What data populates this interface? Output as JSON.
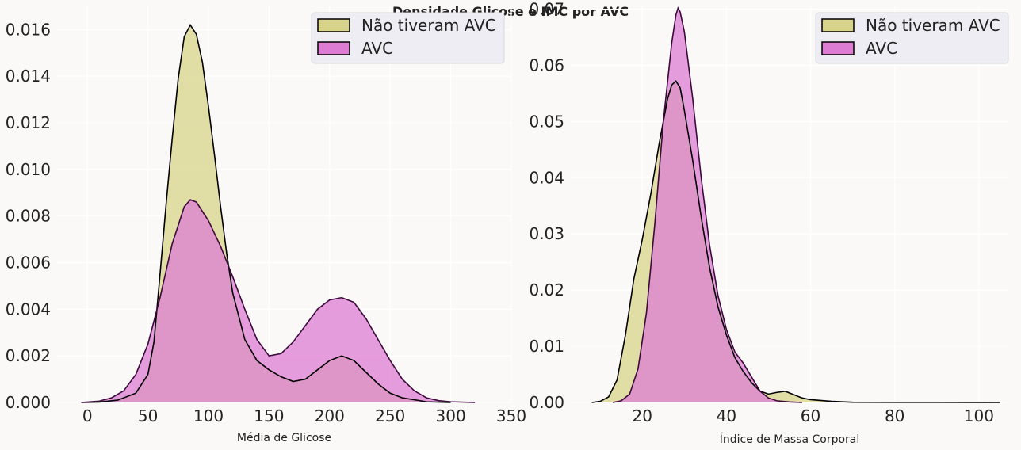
{
  "figure_title": "Densidade Glicose e IMC por AVC",
  "colors": {
    "no_stroke": "#d7d38a",
    "stroke": "#de7cd3",
    "outline": "#000000",
    "plot_bg": "#faf9f7",
    "legend_bg": "#eeedf4"
  },
  "chart_data": [
    {
      "type": "area",
      "xlabel": "Média de Glicose",
      "ylabel": "",
      "xlim": [
        -25,
        350
      ],
      "ylim": [
        0,
        0.017
      ],
      "xticks": [
        0,
        50,
        100,
        150,
        200,
        250,
        300,
        350
      ],
      "yticks": [
        0.0,
        0.002,
        0.004,
        0.006,
        0.008,
        0.01,
        0.012,
        0.014,
        0.016
      ],
      "ytick_labels": [
        "0.000",
        "0.002",
        "0.004",
        "0.006",
        "0.008",
        "0.010",
        "0.012",
        "0.014",
        "0.016"
      ],
      "grid": true,
      "legend_position": "top-right",
      "series": [
        {
          "name": "Não tiveram AVC",
          "color": "#d7d38a",
          "points": [
            [
              -5,
              0
            ],
            [
              10,
              2e-05
            ],
            [
              25,
              0.0001
            ],
            [
              40,
              0.0004
            ],
            [
              50,
              0.0012
            ],
            [
              55,
              0.0026
            ],
            [
              60,
              0.0055
            ],
            [
              65,
              0.0085
            ],
            [
              70,
              0.0113
            ],
            [
              75,
              0.0139
            ],
            [
              80,
              0.0157
            ],
            [
              85,
              0.0162
            ],
            [
              90,
              0.0158
            ],
            [
              95,
              0.0146
            ],
            [
              100,
              0.0127
            ],
            [
              105,
              0.0106
            ],
            [
              110,
              0.0084
            ],
            [
              115,
              0.0064
            ],
            [
              120,
              0.0047
            ],
            [
              130,
              0.0027
            ],
            [
              140,
              0.0018
            ],
            [
              150,
              0.0014
            ],
            [
              160,
              0.0011
            ],
            [
              170,
              0.0009
            ],
            [
              180,
              0.001
            ],
            [
              190,
              0.0014
            ],
            [
              200,
              0.0018
            ],
            [
              210,
              0.002
            ],
            [
              220,
              0.0018
            ],
            [
              230,
              0.0013
            ],
            [
              240,
              0.0008
            ],
            [
              250,
              0.0004
            ],
            [
              260,
              0.0002
            ],
            [
              280,
              3e-05
            ],
            [
              300,
              0
            ]
          ]
        },
        {
          "name": "AVC",
          "color": "#de7cd3",
          "points": [
            [
              -5,
              0
            ],
            [
              10,
              6e-05
            ],
            [
              20,
              0.0002
            ],
            [
              30,
              0.0005
            ],
            [
              40,
              0.0012
            ],
            [
              50,
              0.0025
            ],
            [
              60,
              0.0045
            ],
            [
              70,
              0.0068
            ],
            [
              80,
              0.0084
            ],
            [
              85,
              0.0087
            ],
            [
              90,
              0.0086
            ],
            [
              100,
              0.0078
            ],
            [
              110,
              0.0067
            ],
            [
              120,
              0.0054
            ],
            [
              130,
              0.004
            ],
            [
              140,
              0.0027
            ],
            [
              150,
              0.002
            ],
            [
              160,
              0.0021
            ],
            [
              170,
              0.0026
            ],
            [
              180,
              0.0033
            ],
            [
              190,
              0.004
            ],
            [
              200,
              0.0044
            ],
            [
              210,
              0.0045
            ],
            [
              220,
              0.0043
            ],
            [
              230,
              0.0036
            ],
            [
              240,
              0.0027
            ],
            [
              250,
              0.0018
            ],
            [
              260,
              0.001
            ],
            [
              270,
              0.0005
            ],
            [
              280,
              0.0002
            ],
            [
              290,
              8e-05
            ],
            [
              300,
              3e-05
            ],
            [
              320,
              0
            ]
          ]
        }
      ]
    },
    {
      "type": "area",
      "xlabel": "Índice de Massa Corporal",
      "ylabel": "",
      "xlim": [
        3,
        107
      ],
      "ylim": [
        0,
        0.0705
      ],
      "xticks": [
        20,
        40,
        60,
        80,
        100
      ],
      "yticks": [
        0.0,
        0.01,
        0.02,
        0.03,
        0.04,
        0.05,
        0.06,
        0.07
      ],
      "ytick_labels": [
        "0.00",
        "0.01",
        "0.02",
        "0.03",
        "0.04",
        "0.05",
        "0.06",
        "0.07"
      ],
      "grid": true,
      "legend_position": "top-right",
      "series": [
        {
          "name": "Não tiveram AVC",
          "color": "#d7d38a",
          "points": [
            [
              8,
              0
            ],
            [
              10,
              0.0002
            ],
            [
              12,
              0.001
            ],
            [
              14,
              0.004
            ],
            [
              16,
              0.012
            ],
            [
              18,
              0.022
            ],
            [
              20,
              0.029
            ],
            [
              22,
              0.037
            ],
            [
              24,
              0.046
            ],
            [
              26,
              0.054
            ],
            [
              27,
              0.0565
            ],
            [
              28,
              0.0572
            ],
            [
              29,
              0.056
            ],
            [
              30,
              0.052
            ],
            [
              32,
              0.043
            ],
            [
              34,
              0.033
            ],
            [
              36,
              0.024
            ],
            [
              38,
              0.017
            ],
            [
              40,
              0.012
            ],
            [
              42,
              0.008
            ],
            [
              44,
              0.0055
            ],
            [
              46,
              0.0035
            ],
            [
              48,
              0.002
            ],
            [
              50,
              0.0015
            ],
            [
              52,
              0.0018
            ],
            [
              54,
              0.002
            ],
            [
              56,
              0.0014
            ],
            [
              58,
              0.0008
            ],
            [
              60,
              0.0005
            ],
            [
              65,
              0.0002
            ],
            [
              70,
              5e-05
            ],
            [
              80,
              2e-05
            ],
            [
              90,
              2e-05
            ],
            [
              100,
              1e-05
            ],
            [
              105,
              0
            ]
          ]
        },
        {
          "name": "AVC",
          "color": "#de7cd3",
          "points": [
            [
              13,
              0
            ],
            [
              15,
              0.0003
            ],
            [
              17,
              0.0015
            ],
            [
              19,
              0.006
            ],
            [
              21,
              0.016
            ],
            [
              23,
              0.032
            ],
            [
              25,
              0.05
            ],
            [
              27,
              0.064
            ],
            [
              28,
              0.069
            ],
            [
              28.5,
              0.0702
            ],
            [
              29,
              0.0695
            ],
            [
              30,
              0.066
            ],
            [
              32,
              0.054
            ],
            [
              34,
              0.04
            ],
            [
              36,
              0.028
            ],
            [
              38,
              0.019
            ],
            [
              40,
              0.013
            ],
            [
              42,
              0.009
            ],
            [
              44,
              0.007
            ],
            [
              46,
              0.0045
            ],
            [
              48,
              0.002
            ],
            [
              50,
              0.0008
            ],
            [
              52,
              0.0003
            ],
            [
              55,
              0.0001
            ],
            [
              58,
              0
            ]
          ]
        }
      ]
    }
  ]
}
